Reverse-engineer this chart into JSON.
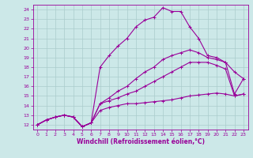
{
  "xlabel": "Windchill (Refroidissement éolien,°C)",
  "bg_color": "#cce8e8",
  "line_color": "#990099",
  "grid_color": "#aacccc",
  "ylim": [
    11.5,
    24.5
  ],
  "xlim": [
    -0.5,
    23.5
  ],
  "yticks": [
    12,
    13,
    14,
    15,
    16,
    17,
    18,
    19,
    20,
    21,
    22,
    23,
    24
  ],
  "xticks": [
    0,
    1,
    2,
    3,
    4,
    5,
    6,
    7,
    8,
    9,
    10,
    11,
    12,
    13,
    14,
    15,
    16,
    17,
    18,
    19,
    20,
    21,
    22,
    23
  ],
  "lines": [
    {
      "x": [
        0,
        1,
        2,
        3,
        4,
        5,
        6,
        7,
        8,
        9,
        10,
        11,
        12,
        13,
        14,
        15,
        16,
        17,
        18,
        19,
        20,
        21,
        22,
        23
      ],
      "y": [
        12,
        12.5,
        12.8,
        13.0,
        12.8,
        11.8,
        12.2,
        18.0,
        19.2,
        20.2,
        21.0,
        22.2,
        22.9,
        23.2,
        24.2,
        23.8,
        23.8,
        22.2,
        21.0,
        19.2,
        19.0,
        18.5,
        17.5,
        16.8
      ]
    },
    {
      "x": [
        0,
        1,
        2,
        3,
        4,
        5,
        6,
        7,
        8,
        9,
        10,
        11,
        12,
        13,
        14,
        15,
        16,
        17,
        18,
        19,
        20,
        21,
        22,
        23
      ],
      "y": [
        12,
        12.5,
        12.8,
        13.0,
        12.8,
        11.8,
        12.2,
        14.2,
        14.8,
        15.5,
        16.0,
        16.8,
        17.5,
        18.0,
        18.8,
        19.2,
        19.5,
        19.8,
        19.5,
        19.0,
        18.8,
        18.5,
        15.2,
        16.8
      ]
    },
    {
      "x": [
        0,
        1,
        2,
        3,
        4,
        5,
        6,
        7,
        8,
        9,
        10,
        11,
        12,
        13,
        14,
        15,
        16,
        17,
        18,
        19,
        20,
        21,
        22,
        23
      ],
      "y": [
        12,
        12.5,
        12.8,
        13.0,
        12.8,
        11.8,
        12.2,
        14.2,
        14.5,
        14.8,
        15.2,
        15.5,
        16.0,
        16.5,
        17.0,
        17.5,
        18.0,
        18.5,
        18.5,
        18.5,
        18.2,
        17.8,
        15.0,
        15.2
      ]
    },
    {
      "x": [
        0,
        1,
        2,
        3,
        4,
        5,
        6,
        7,
        8,
        9,
        10,
        11,
        12,
        13,
        14,
        15,
        16,
        17,
        18,
        19,
        20,
        21,
        22,
        23
      ],
      "y": [
        12,
        12.5,
        12.8,
        13.0,
        12.8,
        11.8,
        12.2,
        13.5,
        13.8,
        14.0,
        14.2,
        14.2,
        14.3,
        14.4,
        14.5,
        14.6,
        14.8,
        15.0,
        15.1,
        15.2,
        15.3,
        15.2,
        15.0,
        15.2
      ]
    }
  ]
}
